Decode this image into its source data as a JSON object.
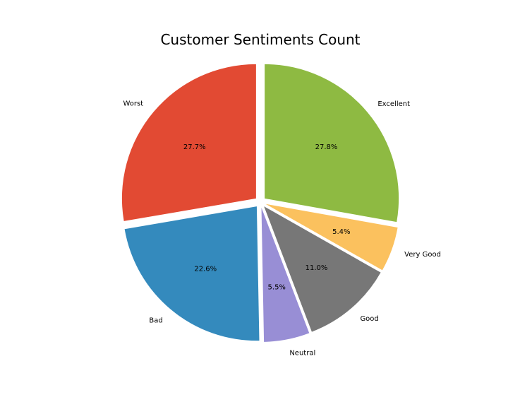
{
  "chart_data": {
    "type": "pie",
    "title": "Customer Sentiments Count",
    "slices": [
      {
        "label": "Excellent",
        "value": 27.8,
        "pct_label": "27.8%",
        "color": "#8EBA42"
      },
      {
        "label": "Very Good",
        "value": 5.4,
        "pct_label": "5.4%",
        "color": "#FBC15E"
      },
      {
        "label": "Good",
        "value": 11.0,
        "pct_label": "11.0%",
        "color": "#777777"
      },
      {
        "label": "Neutral",
        "value": 5.5,
        "pct_label": "5.5%",
        "color": "#988ED5"
      },
      {
        "label": "Bad",
        "value": 22.6,
        "pct_label": "22.6%",
        "color": "#348ABD"
      },
      {
        "label": "Worst",
        "value": 27.7,
        "pct_label": "27.7%",
        "color": "#E24A33"
      }
    ],
    "exploded": true,
    "start": "top",
    "direction": "clockwise"
  }
}
